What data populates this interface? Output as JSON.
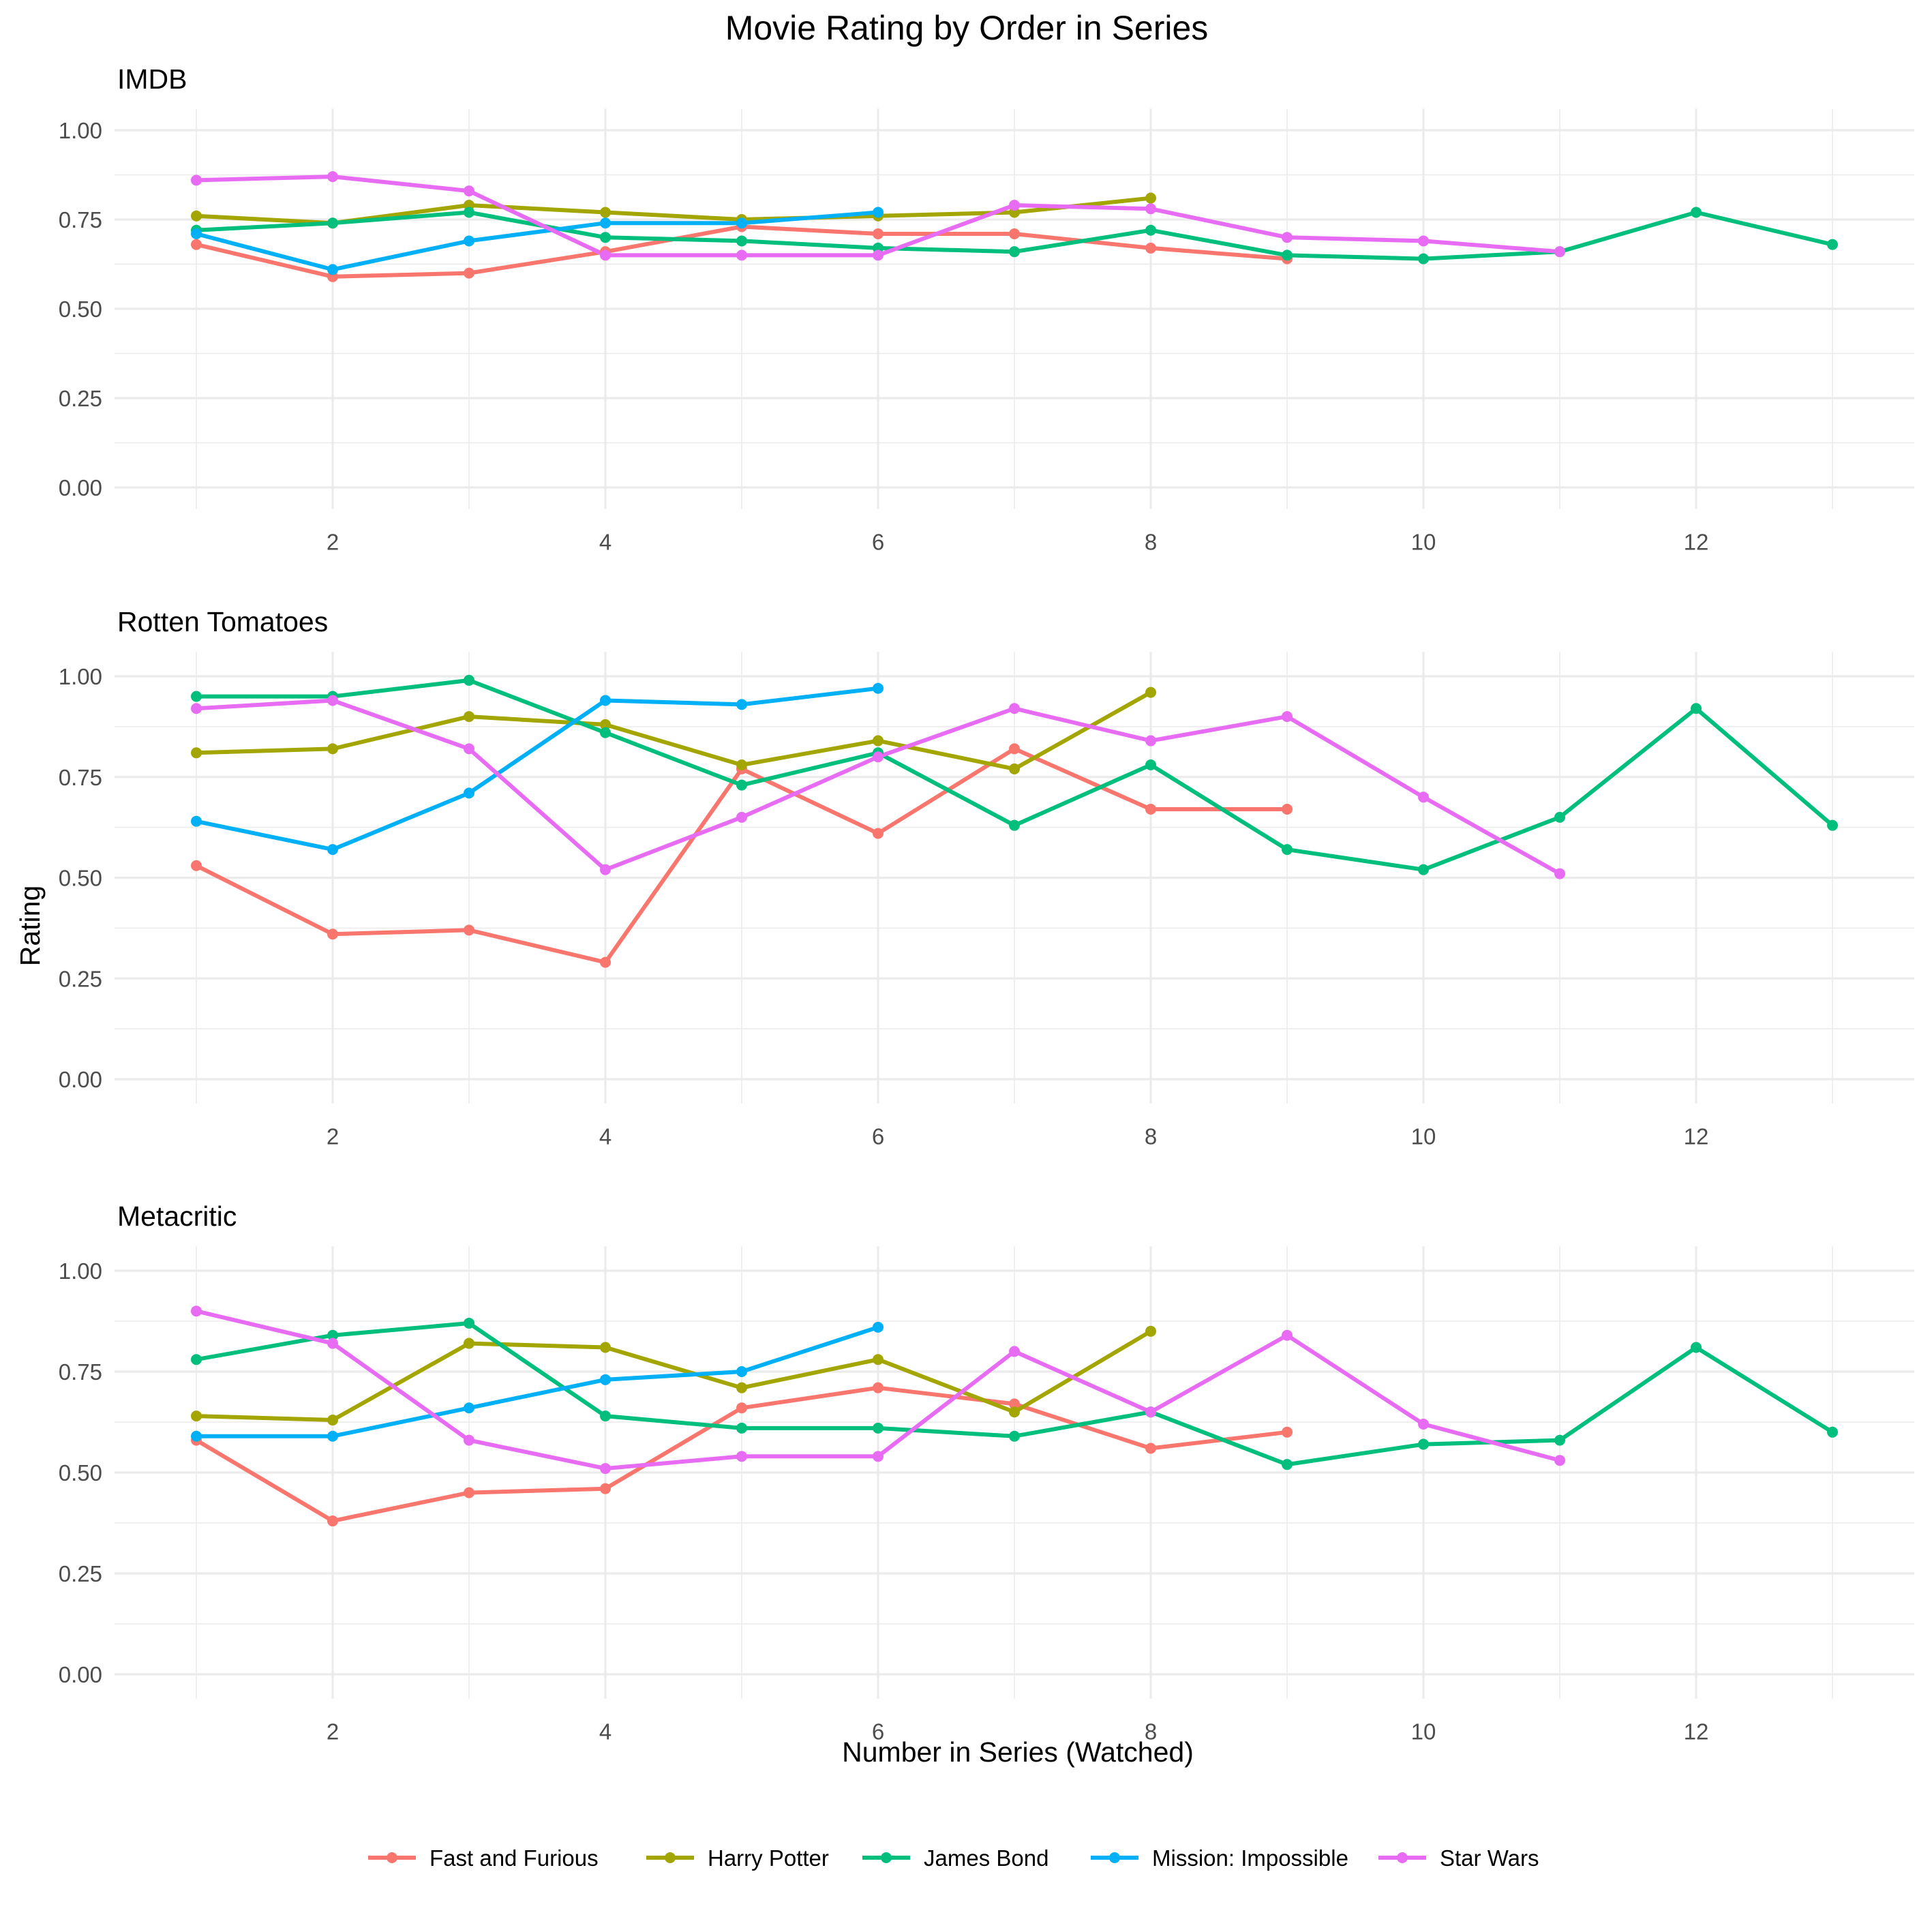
{
  "chart_data": {
    "type": "line",
    "title": "Movie Rating by Order in Series",
    "xlabel": "Number in Series (Watched)",
    "ylabel": "Rating",
    "xlim": [
      0.4,
      13.6
    ],
    "ylim": [
      -0.06,
      1.06
    ],
    "x_ticks": [
      2,
      4,
      6,
      8,
      10,
      12
    ],
    "y_ticks": [
      0,
      0.25,
      0.5,
      0.75,
      1
    ],
    "x_tick_labels": [
      "2",
      "4",
      "6",
      "8",
      "10",
      "12"
    ],
    "y_tick_labels": [
      "0.00",
      "0.25",
      "0.50",
      "0.75",
      "1.00"
    ],
    "grid": true,
    "legend_position": "bottom",
    "series_colors": {
      "Fast and Furious": "#F8766D",
      "Harry Potter": "#A3A500",
      "James Bond": "#00BF7D",
      "Mission: Impossible": "#00B0F6",
      "Star Wars": "#E76BF3"
    },
    "legend": [
      "Fast and Furious",
      "Harry Potter",
      "James Bond",
      "Mission: Impossible",
      "Star Wars"
    ],
    "panels": [
      {
        "title": "IMDB",
        "series": [
          {
            "name": "Fast and Furious",
            "x": [
              1,
              2,
              3,
              4,
              5,
              6,
              7,
              8,
              9
            ],
            "y": [
              0.68,
              0.59,
              0.6,
              0.66,
              0.73,
              0.71,
              0.71,
              0.67,
              0.64
            ]
          },
          {
            "name": "Harry Potter",
            "x": [
              1,
              2,
              3,
              4,
              5,
              6,
              7,
              8
            ],
            "y": [
              0.76,
              0.74,
              0.79,
              0.77,
              0.75,
              0.76,
              0.77,
              0.81
            ]
          },
          {
            "name": "James Bond",
            "x": [
              1,
              2,
              3,
              4,
              5,
              6,
              7,
              8,
              9,
              10,
              11,
              12,
              13
            ],
            "y": [
              0.72,
              0.74,
              0.77,
              0.7,
              0.69,
              0.67,
              0.66,
              0.72,
              0.65,
              0.64,
              0.66,
              0.77,
              0.68
            ]
          },
          {
            "name": "Mission: Impossible",
            "x": [
              1,
              2,
              3,
              4,
              5,
              6
            ],
            "y": [
              0.71,
              0.61,
              0.69,
              0.74,
              0.74,
              0.77
            ]
          },
          {
            "name": "Star Wars",
            "x": [
              1,
              2,
              3,
              4,
              5,
              6,
              7,
              8,
              9,
              10,
              11
            ],
            "y": [
              0.86,
              0.87,
              0.83,
              0.65,
              0.65,
              0.65,
              0.79,
              0.78,
              0.7,
              0.69,
              0.66
            ]
          }
        ]
      },
      {
        "title": "Rotten Tomatoes",
        "series": [
          {
            "name": "Fast and Furious",
            "x": [
              1,
              2,
              3,
              4,
              5,
              6,
              7,
              8,
              9
            ],
            "y": [
              0.53,
              0.36,
              0.37,
              0.29,
              0.77,
              0.61,
              0.82,
              0.67,
              0.67
            ]
          },
          {
            "name": "Harry Potter",
            "x": [
              1,
              2,
              3,
              4,
              5,
              6,
              7,
              8
            ],
            "y": [
              0.81,
              0.82,
              0.9,
              0.88,
              0.78,
              0.84,
              0.77,
              0.96
            ]
          },
          {
            "name": "James Bond",
            "x": [
              1,
              2,
              3,
              4,
              5,
              6,
              7,
              8,
              9,
              10,
              11,
              12,
              13
            ],
            "y": [
              0.95,
              0.95,
              0.99,
              0.86,
              0.73,
              0.81,
              0.63,
              0.78,
              0.57,
              0.52,
              0.65,
              0.92,
              0.63
            ]
          },
          {
            "name": "Mission: Impossible",
            "x": [
              1,
              2,
              3,
              4,
              5,
              6
            ],
            "y": [
              0.64,
              0.57,
              0.71,
              0.94,
              0.93,
              0.97
            ]
          },
          {
            "name": "Star Wars",
            "x": [
              1,
              2,
              3,
              4,
              5,
              6,
              7,
              8,
              9,
              10,
              11
            ],
            "y": [
              0.92,
              0.94,
              0.82,
              0.52,
              0.65,
              0.8,
              0.92,
              0.84,
              0.9,
              0.7,
              0.51
            ]
          }
        ]
      },
      {
        "title": "Metacritic",
        "series": [
          {
            "name": "Fast and Furious",
            "x": [
              1,
              2,
              3,
              4,
              5,
              6,
              7,
              8,
              9
            ],
            "y": [
              0.58,
              0.38,
              0.45,
              0.46,
              0.66,
              0.71,
              0.67,
              0.56,
              0.6
            ]
          },
          {
            "name": "Harry Potter",
            "x": [
              1,
              2,
              3,
              4,
              5,
              6,
              7,
              8
            ],
            "y": [
              0.64,
              0.63,
              0.82,
              0.81,
              0.71,
              0.78,
              0.65,
              0.85
            ]
          },
          {
            "name": "James Bond",
            "x": [
              1,
              2,
              3,
              4,
              5,
              6,
              7,
              8,
              9,
              10,
              11,
              12,
              13
            ],
            "y": [
              0.78,
              0.84,
              0.87,
              0.64,
              0.61,
              0.61,
              0.59,
              0.65,
              0.52,
              0.57,
              0.58,
              0.81,
              0.6
            ]
          },
          {
            "name": "Mission: Impossible",
            "x": [
              1,
              2,
              3,
              4,
              5,
              6
            ],
            "y": [
              0.59,
              0.59,
              0.66,
              0.73,
              0.75,
              0.86
            ]
          },
          {
            "name": "Star Wars",
            "x": [
              1,
              2,
              3,
              4,
              5,
              6,
              7,
              8,
              9,
              10,
              11
            ],
            "y": [
              0.9,
              0.82,
              0.58,
              0.51,
              0.54,
              0.54,
              0.8,
              0.65,
              0.84,
              0.62,
              0.53
            ]
          }
        ]
      }
    ]
  }
}
